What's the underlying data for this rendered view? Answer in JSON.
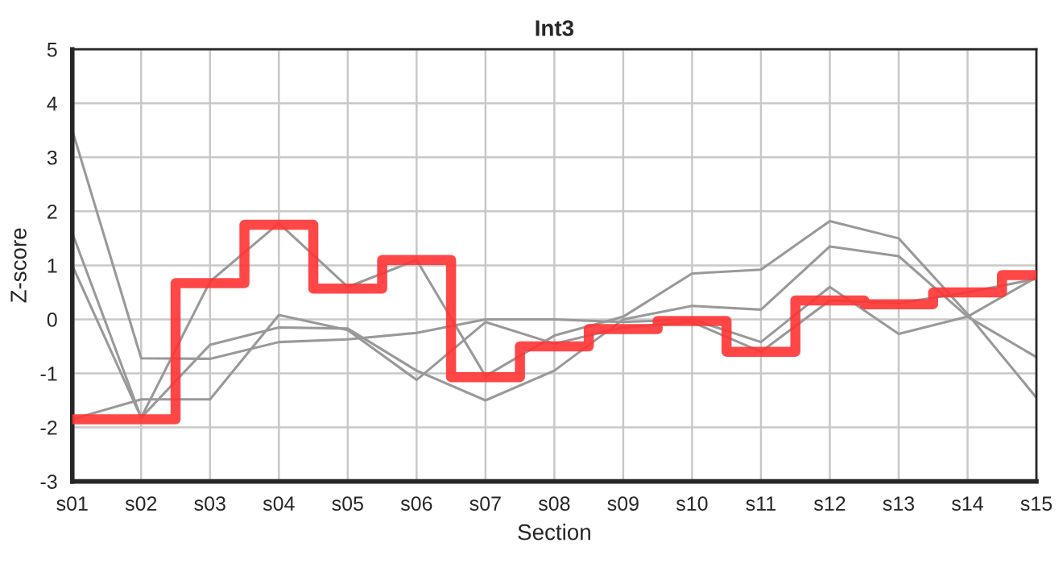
{
  "chart_data": {
    "type": "line",
    "title": "Int3",
    "xlabel": "Section",
    "ylabel": "Z-score",
    "categories": [
      "s01",
      "s02",
      "s03",
      "s04",
      "s05",
      "s06",
      "s07",
      "s08",
      "s09",
      "s10",
      "s11",
      "s12",
      "s13",
      "s14",
      "s15"
    ],
    "series": [
      {
        "color": "#999999",
        "values": [
          3.5,
          -0.72,
          -0.73,
          -0.42,
          -0.37,
          -0.25,
          0.0,
          0.0,
          -0.05,
          0.0,
          -0.42,
          0.6,
          -0.27,
          0.05,
          -0.7
        ]
      },
      {
        "color": "#999999",
        "values": [
          1.6,
          -1.82,
          0.7,
          1.78,
          0.6,
          1.1,
          -1.05,
          -0.3,
          0.05,
          0.85,
          0.92,
          1.82,
          1.5,
          0.1,
          -1.45
        ]
      },
      {
        "color": "#999999",
        "values": [
          1.0,
          -1.82,
          -0.47,
          -0.15,
          -0.17,
          -0.95,
          -1.5,
          -0.95,
          0.0,
          0.25,
          0.18,
          1.35,
          1.17,
          0.05,
          0.78
        ]
      },
      {
        "color": "#999999",
        "values": [
          -1.85,
          -1.48,
          -1.48,
          0.08,
          -0.2,
          -1.12,
          -0.05,
          -0.45,
          -0.15,
          -0.05,
          -0.6,
          0.35,
          0.3,
          0.5,
          0.75
        ]
      },
      {
        "type": "step",
        "color": "#ff3333",
        "values": [
          -1.85,
          -1.85,
          0.67,
          1.75,
          0.57,
          1.1,
          -1.07,
          -0.5,
          -0.18,
          -0.03,
          -0.6,
          0.35,
          0.28,
          0.5,
          0.82
        ]
      }
    ],
    "ylim": [
      -3,
      5
    ],
    "yticks": [
      -3,
      -2,
      -1,
      0,
      1,
      2,
      3,
      4,
      5
    ],
    "grid": true
  }
}
